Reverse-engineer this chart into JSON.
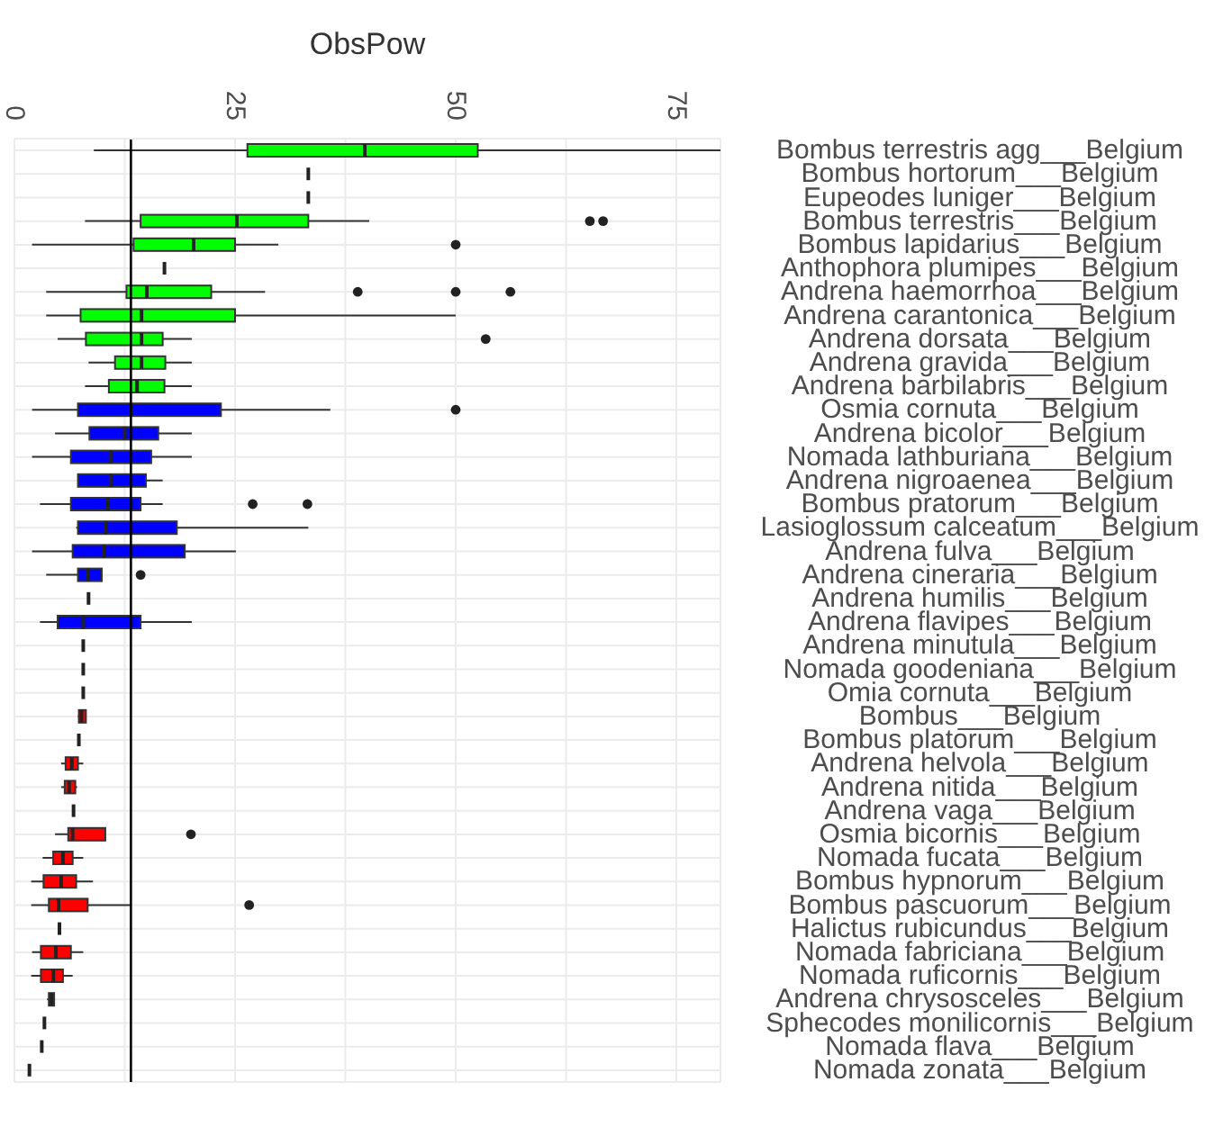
{
  "chart_data": {
    "type": "box",
    "orientation": "horizontal",
    "xlabel": "ObsPow",
    "categories": [
      "Bombus terrestris agg___Belgium",
      "Bombus hortorum___Belgium",
      "Eupeodes luniger___Belgium",
      "Bombus terrestris___Belgium",
      "Bombus lapidarius___Belgium",
      "Anthophora plumipes___Belgium",
      "Andrena haemorrhoa___Belgium",
      "Andrena carantonica___Belgium",
      "Andrena dorsata___Belgium",
      "Andrena gravida___Belgium",
      "Andrena barbilabris___Belgium",
      "Osmia cornuta___Belgium",
      "Andrena bicolor___Belgium",
      "Nomada lathburiana___Belgium",
      "Andrena nigroaenea___Belgium",
      "Bombus pratorum___Belgium",
      "Lasioglossum calceatum___Belgium",
      "Andrena fulva___Belgium",
      "Andrena cineraria___Belgium",
      "Andrena humilis___Belgium",
      "Andrena flavipes___Belgium",
      "Andrena minutula___Belgium",
      "Nomada goodeniana___Belgium",
      "Omia cornuta___Belgium",
      "Bombus___Belgium",
      "Bombus platorum___Belgium",
      "Andrena helvola___Belgium",
      "Andrena nitida___Belgium",
      "Andrena vaga___Belgium",
      "Osmia bicornis___Belgium",
      "Nomada fucata___Belgium",
      "Bombus hypnorum___Belgium",
      "Bombus pascuorum___Belgium",
      "Halictus rubicundus___Belgium",
      "Nomada fabriciana___Belgium",
      "Nomada ruficornis___Belgium",
      "Andrena chrysosceles___Belgium",
      "Sphecodes monilicornis___Belgium",
      "Nomada flava___Belgium",
      "Nomada zonata___Belgium"
    ],
    "boxes": [
      {
        "low": 9.0,
        "q1": 26.4,
        "median": 39.7,
        "q3": 52.5,
        "high": 80
      },
      {
        "low": 33.3,
        "q1": 33.3,
        "median": 33.3,
        "q3": 33.3,
        "high": 33.3
      },
      {
        "low": 33.3,
        "q1": 33.3,
        "median": 33.3,
        "q3": 33.3,
        "high": 33.3
      },
      {
        "low": 8.0,
        "q1": 14.3,
        "median": 25.2,
        "q3": 33.3,
        "high": 40.2,
        "outliers": [
          65.2,
          66.7
        ]
      },
      {
        "low": 2.0,
        "q1": 13.5,
        "median": 20.3,
        "q3": 25.0,
        "high": 29.9,
        "outliers": [
          50.0
        ]
      },
      {
        "low": 17.0,
        "q1": 17.0,
        "median": 17.0,
        "q3": 17.0,
        "high": 17.0
      },
      {
        "low": 3.6,
        "q1": 12.7,
        "median": 15.0,
        "q3": 22.3,
        "high": 28.4,
        "outliers": [
          38.9,
          50.0,
          56.2
        ]
      },
      {
        "low": 3.6,
        "q1": 7.5,
        "median": 14.4,
        "q3": 25.0,
        "high": 50.0
      },
      {
        "low": 4.9,
        "q1": 8.1,
        "median": 14.4,
        "q3": 16.8,
        "high": 20.1,
        "outliers": [
          53.4
        ]
      },
      {
        "low": 8.4,
        "q1": 11.4,
        "median": 14.4,
        "q3": 17.1,
        "high": 20.1
      },
      {
        "low": 8.0,
        "q1": 10.7,
        "median": 13.9,
        "q3": 17.0,
        "high": 20.1
      },
      {
        "low": 2.0,
        "q1": 7.2,
        "median": 13.2,
        "q3": 23.4,
        "high": 35.8,
        "outliers": [
          50.0
        ]
      },
      {
        "low": 4.6,
        "q1": 8.5,
        "median": 12.5,
        "q3": 16.3,
        "high": 20.1
      },
      {
        "low": 2.0,
        "q1": 6.4,
        "median": 10.9,
        "q3": 15.5,
        "high": 20.1
      },
      {
        "low": 7.2,
        "q1": 7.2,
        "median": 10.9,
        "q3": 14.9,
        "high": 16.8
      },
      {
        "low": 2.9,
        "q1": 6.4,
        "median": 10.6,
        "q3": 14.3,
        "high": 16.8,
        "outliers": [
          27.0,
          33.2
        ]
      },
      {
        "low": 7.0,
        "q1": 7.2,
        "median": 10.3,
        "q3": 18.4,
        "high": 33.3
      },
      {
        "low": 2.0,
        "q1": 6.6,
        "median": 10.1,
        "q3": 19.3,
        "high": 25.1
      },
      {
        "low": 3.6,
        "q1": 7.2,
        "median": 8.3,
        "q3": 9.9,
        "high": 9.9,
        "outliers": [
          14.3
        ]
      },
      {
        "low": 8.4,
        "q1": 8.4,
        "median": 8.4,
        "q3": 8.4,
        "high": 8.4
      },
      {
        "low": 2.9,
        "q1": 4.9,
        "median": 7.8,
        "q3": 14.3,
        "high": 20.1
      },
      {
        "low": 7.8,
        "q1": 7.8,
        "median": 7.8,
        "q3": 7.8,
        "high": 7.8
      },
      {
        "low": 7.8,
        "q1": 7.8,
        "median": 7.8,
        "q3": 7.8,
        "high": 7.8
      },
      {
        "low": 7.8,
        "q1": 7.8,
        "median": 7.8,
        "q3": 7.8,
        "high": 7.8
      },
      {
        "low": 7.2,
        "q1": 7.3,
        "median": 7.6,
        "q3": 8.1,
        "high": 8.1
      },
      {
        "low": 7.3,
        "q1": 7.3,
        "median": 7.3,
        "q3": 7.3,
        "high": 7.3
      },
      {
        "low": 5.3,
        "q1": 5.8,
        "median": 6.5,
        "q3": 7.2,
        "high": 7.8
      },
      {
        "low": 5.3,
        "q1": 5.7,
        "median": 6.2,
        "q3": 6.9,
        "high": 7.1
      },
      {
        "low": 6.7,
        "q1": 6.7,
        "median": 6.7,
        "q3": 6.7,
        "high": 6.7
      },
      {
        "low": 4.6,
        "q1": 6.1,
        "median": 6.6,
        "q3": 10.3,
        "high": 10.3,
        "outliers": [
          20.0
        ]
      },
      {
        "low": 3.2,
        "q1": 4.4,
        "median": 5.5,
        "q3": 6.6,
        "high": 7.8
      },
      {
        "low": 1.9,
        "q1": 3.3,
        "median": 5.3,
        "q3": 7.0,
        "high": 8.9
      },
      {
        "low": 1.9,
        "q1": 3.9,
        "median": 5.0,
        "q3": 8.3,
        "high": 13.2,
        "outliers": [
          26.6
        ]
      },
      {
        "low": 5.1,
        "q1": 5.1,
        "median": 5.1,
        "q3": 5.1,
        "high": 5.1
      },
      {
        "low": 2.0,
        "q1": 3.0,
        "median": 4.7,
        "q3": 6.4,
        "high": 7.8
      },
      {
        "low": 1.9,
        "q1": 3.0,
        "median": 4.4,
        "q3": 5.5,
        "high": 6.6
      },
      {
        "low": 3.7,
        "q1": 3.9,
        "median": 4.2,
        "q3": 4.5,
        "high": 4.6
      },
      {
        "low": 3.4,
        "q1": 3.4,
        "median": 3.4,
        "q3": 3.4,
        "high": 3.4
      },
      {
        "low": 3.1,
        "q1": 3.1,
        "median": 3.1,
        "q3": 3.1,
        "high": 3.1
      },
      {
        "low": 1.7,
        "q1": 1.7,
        "median": 1.7,
        "q3": 1.7,
        "high": 1.7
      }
    ],
    "colors": [
      "#00ff00",
      "#222222",
      "#222222",
      "#00ff00",
      "#00ff00",
      "#222222",
      "#00ff00",
      "#00ff00",
      "#00ff00",
      "#00ff00",
      "#00ff00",
      "#0000ff",
      "#0000ff",
      "#0000ff",
      "#0000ff",
      "#0000ff",
      "#0000ff",
      "#0000ff",
      "#0000ff",
      "#222222",
      "#0000ff",
      "#222222",
      "#222222",
      "#222222",
      "#ff0000",
      "#222222",
      "#ff0000",
      "#ff0000",
      "#222222",
      "#ff0000",
      "#ff0000",
      "#ff0000",
      "#ff0000",
      "#222222",
      "#ff0000",
      "#ff0000",
      "#ff0000",
      "#222222",
      "#222222",
      "#222222"
    ],
    "xlim": [
      0,
      80
    ],
    "xticks": [
      0,
      {
        "value": 12.5,
        "label": null
      },
      25,
      {
        "value": 37.5,
        "label": null
      },
      50,
      {
        "value": 62.5,
        "label": null
      },
      75
    ],
    "ref_lines": [
      {
        "axis": "x",
        "value": 13.2
      }
    ],
    "grid": true
  }
}
